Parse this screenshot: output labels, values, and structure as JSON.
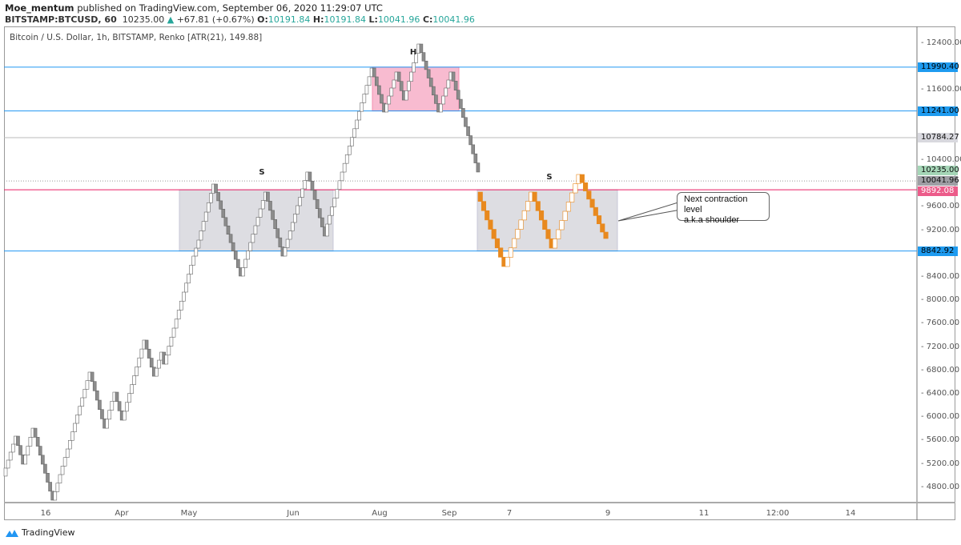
{
  "header": {
    "author": "Moe_mentum",
    "published": "published on TradingView.com, September 06, 2020 11:29:07 UTC",
    "symbol": "BITSTAMP:BTCUSD, 60",
    "last": "10235.00",
    "change": "+67.81 (+0.67%)",
    "o_label": "O:",
    "o": "10191.84",
    "h_label": "H:",
    "h": "10191.84",
    "l_label": "L:",
    "l": "10041.96",
    "c_label": "C:",
    "c": "10041.96"
  },
  "chart_title": "Bitcoin / U.S. Dollar, 1h, BITSTAMP, Renko [ATR(21), 149.88]",
  "annotations": {
    "left_shoulder": "S",
    "head": "H",
    "right_shoulder": "S",
    "callout": [
      "Next contraction level",
      "a.k.a shoulder"
    ]
  },
  "brand": "TradingView",
  "colors": {
    "up": "#ffffff",
    "down": "#8c8c8c",
    "orange": "#e8891e",
    "blue_line": "#2196f3",
    "pink_line": "#e91e63",
    "pink_box": "#f8bbd0",
    "gray_box": "#dddde2"
  },
  "chart_data": {
    "type": "renko",
    "brick_size": 149.88,
    "ylim": [
      4600,
      12600
    ],
    "y_ticks": [
      "12400.00",
      "11600.00",
      "10400.00",
      "9600.00",
      "9200.00",
      "8400.00",
      "8000.00",
      "7600.00",
      "7200.00",
      "6800.00",
      "6400.00",
      "6000.00",
      "5600.00",
      "5200.00",
      "4800.00"
    ],
    "x_ticks": [
      "16",
      "Apr",
      "May",
      "Jun",
      "Aug",
      "Sep",
      "7",
      "9",
      "11",
      "12:00",
      "14"
    ],
    "pivots_gray": [
      4990,
      5674,
      5195,
      5810,
      4578,
      6770,
      5810,
      6427,
      5948,
      7318,
      6700,
      7112,
      6907,
      8756,
      9030,
      9989,
      8414,
      9852,
      8756,
      10195,
      9099,
      9304,
      11085,
      11975,
      11222,
      11907,
      11427,
      12386,
      11222,
      11907,
      10195
    ],
    "pivots_orange": [
      9852,
      8578,
      9852,
      8893,
      10153,
      9167,
      9057
    ],
    "levels": [
      {
        "price": 11990.4,
        "label": "11990.40",
        "kind": "blue"
      },
      {
        "price": 11241.0,
        "label": "11241.00",
        "kind": "blue"
      },
      {
        "price": 10784.27,
        "label": "10784.27",
        "kind": "gray"
      },
      {
        "price": 10235.0,
        "label": "10235.00",
        "kind": "green"
      },
      {
        "price": 10041.96,
        "label": "10041.96",
        "kind": "dark"
      },
      {
        "price": 9892.08,
        "label": "9892.08",
        "kind": "pink"
      },
      {
        "price": 8842.92,
        "label": "8842.92",
        "kind": "blue"
      }
    ],
    "boxes": [
      {
        "kind": "gray",
        "from_price": 8842.92,
        "to_price": 9892.08
      },
      {
        "kind": "pink",
        "from_price": 11241.0,
        "to_price": 11990.4
      },
      {
        "kind": "gray",
        "from_price": 8842.92,
        "to_price": 9892.08
      }
    ]
  }
}
